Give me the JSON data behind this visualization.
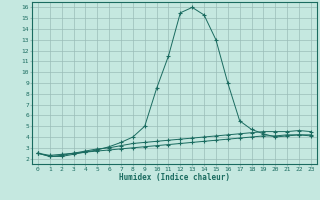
{
  "title": "",
  "xlabel": "Humidex (Indice chaleur)",
  "ylabel": "",
  "background_color": "#c5e8e0",
  "grid_color": "#9bbdb8",
  "line_color": "#1a6b60",
  "xlim": [
    -0.5,
    23.5
  ],
  "ylim": [
    1.5,
    16.5
  ],
  "xticks": [
    0,
    1,
    2,
    3,
    4,
    5,
    6,
    7,
    8,
    9,
    10,
    11,
    12,
    13,
    14,
    15,
    16,
    17,
    18,
    19,
    20,
    21,
    22,
    23
  ],
  "yticks": [
    2,
    3,
    4,
    5,
    6,
    7,
    8,
    9,
    10,
    11,
    12,
    13,
    14,
    15,
    16
  ],
  "line1_x": [
    0,
    1,
    2,
    3,
    4,
    5,
    6,
    7,
    8,
    9,
    10,
    11,
    12,
    13,
    14,
    15,
    16,
    17,
    18,
    19,
    20,
    21,
    22,
    23
  ],
  "line1_y": [
    2.5,
    2.2,
    2.2,
    2.4,
    2.6,
    2.8,
    3.1,
    3.5,
    4.0,
    5.0,
    8.5,
    11.5,
    15.5,
    16.0,
    15.3,
    13.0,
    9.0,
    5.5,
    4.7,
    4.3,
    4.0,
    4.1,
    4.2,
    4.1
  ],
  "line2_x": [
    0,
    1,
    2,
    3,
    4,
    5,
    6,
    7,
    8,
    9,
    10,
    11,
    12,
    13,
    14,
    15,
    16,
    17,
    18,
    19,
    20,
    21,
    22,
    23
  ],
  "line2_y": [
    2.5,
    2.2,
    2.3,
    2.5,
    2.7,
    2.9,
    3.0,
    3.2,
    3.4,
    3.5,
    3.6,
    3.7,
    3.8,
    3.9,
    4.0,
    4.1,
    4.2,
    4.3,
    4.4,
    4.5,
    4.5,
    4.5,
    4.6,
    4.5
  ],
  "line3_x": [
    0,
    1,
    2,
    3,
    4,
    5,
    6,
    7,
    8,
    9,
    10,
    11,
    12,
    13,
    14,
    15,
    16,
    17,
    18,
    19,
    20,
    21,
    22,
    23
  ],
  "line3_y": [
    2.5,
    2.3,
    2.4,
    2.5,
    2.6,
    2.7,
    2.8,
    2.9,
    3.0,
    3.1,
    3.2,
    3.3,
    3.4,
    3.5,
    3.6,
    3.7,
    3.8,
    3.9,
    4.0,
    4.1,
    4.1,
    4.2,
    4.2,
    4.2
  ]
}
